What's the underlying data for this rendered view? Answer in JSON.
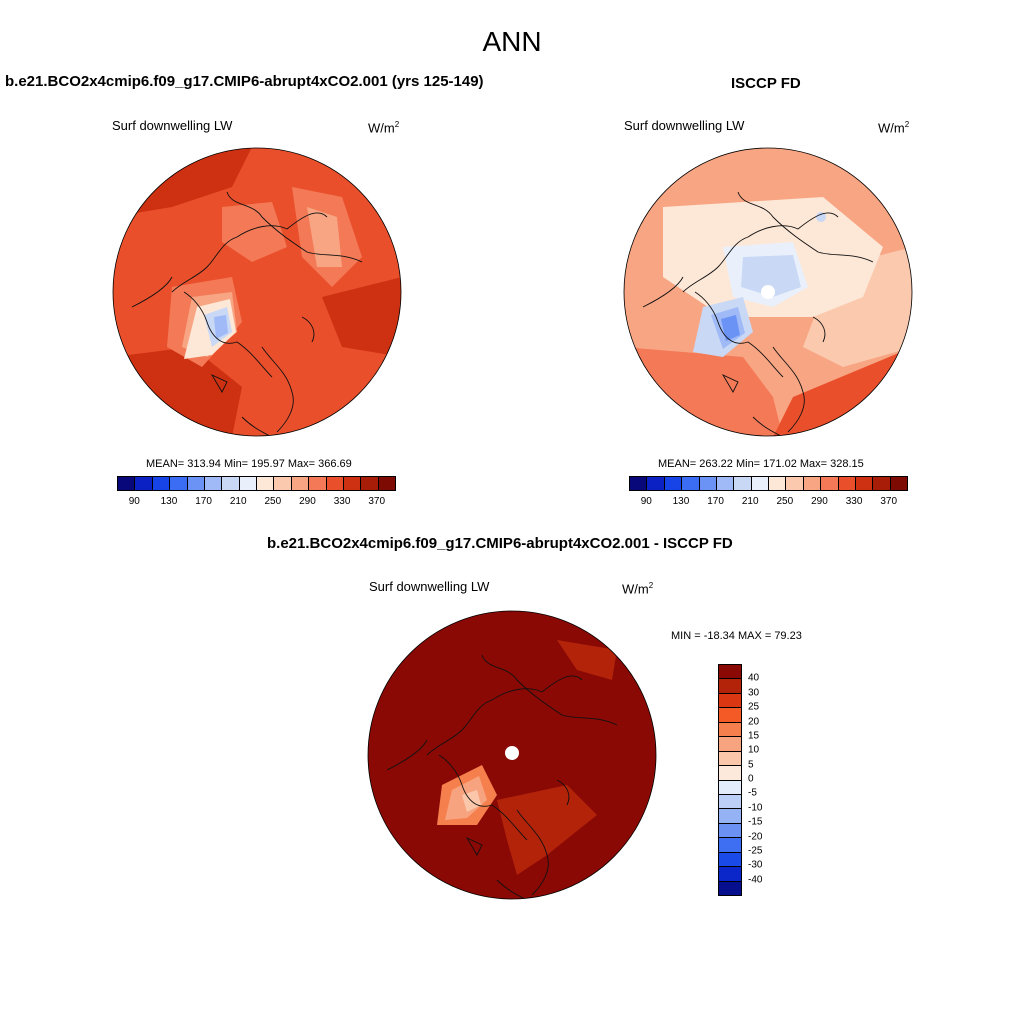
{
  "title": "ANN",
  "panels": [
    {
      "id": "model",
      "case_title": "b.e21.BCO2x4cmip6.f09_g17.CMIP6-abrupt4xCO2.001 (yrs 125-149)",
      "variable": "Surf downwelling LW",
      "units_base": "W/m",
      "units_exp": "2",
      "stats": "MEAN= 313.94  Min= 195.97  Max= 366.69",
      "mean": 313.94,
      "min": 195.97,
      "max": 366.69
    },
    {
      "id": "obs",
      "case_title": "ISCCP FD",
      "variable": "Surf downwelling LW",
      "units_base": "W/m",
      "units_exp": "2",
      "stats": "MEAN= 263.22  Min= 171.02  Max= 328.15",
      "mean": 263.22,
      "min": 171.02,
      "max": 328.15
    },
    {
      "id": "diff",
      "case_title": "b.e21.BCO2x4cmip6.f09_g17.CMIP6-abrupt4xCO2.001 - ISCCP FD",
      "variable": "Surf downwelling LW",
      "units_base": "W/m",
      "units_exp": "2",
      "stats": "MIN = -18.34 MAX =  79.23",
      "min": -18.34,
      "max": 79.23
    }
  ],
  "abs_colorbar": {
    "colors": [
      "#08087a",
      "#0c21c4",
      "#1744e6",
      "#3a6cf4",
      "#6b93f5",
      "#9fbaf6",
      "#c8d8f5",
      "#e9f0fb",
      "#fde7d7",
      "#fbc9ae",
      "#f8a583",
      "#f47a57",
      "#ea4f2b",
      "#cd3112",
      "#a71d08",
      "#7d0b04"
    ],
    "labels": [
      "90",
      "130",
      "170",
      "210",
      "250",
      "290",
      "330",
      "370"
    ]
  },
  "diff_colorbar": {
    "colors": [
      "#8a0905",
      "#b3230a",
      "#db3713",
      "#f35a26",
      "#f5804d",
      "#f8a37f",
      "#fbc7aa",
      "#fde9dc",
      "#e3ecfa",
      "#bcd0f7",
      "#95b3f4",
      "#6b92f2",
      "#3e6ef1",
      "#1a4ae8",
      "#0c27c9",
      "#06108f"
    ],
    "labels": [
      "40",
      "30",
      "25",
      "20",
      "15",
      "10",
      "5",
      "0",
      "-5",
      "-10",
      "-15",
      "-20",
      "-25",
      "-30",
      "-40"
    ]
  }
}
